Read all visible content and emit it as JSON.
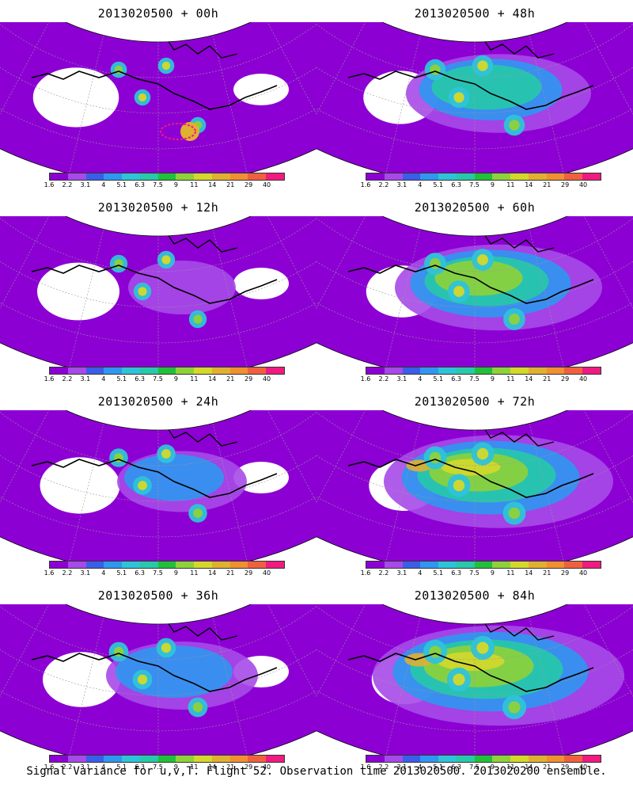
{
  "caption": "Signal Variance for u,v,T. Flight 52. Observation time 2013020500. 2013020200 ensemble.",
  "colorbar": {
    "labels": [
      "1.6",
      "2.2",
      "3.1",
      "4",
      "5.1",
      "6.3",
      "7.5",
      "9",
      "11",
      "14",
      "21",
      "29",
      "40"
    ],
    "colors": [
      "#8c00d4",
      "#a64ae8",
      "#3a5ee8",
      "#2f97f0",
      "#2fc3d8",
      "#27c9a8",
      "#20c03a",
      "#8ed23a",
      "#d4d82a",
      "#e0b030",
      "#f09030",
      "#f06040",
      "#f01a80"
    ]
  },
  "panels": [
    {
      "title": "2013020500 + 00h",
      "intensity": 0.05
    },
    {
      "title": "2013020500 + 48h",
      "intensity": 0.55
    },
    {
      "title": "2013020500 + 12h",
      "intensity": 0.2
    },
    {
      "title": "2013020500 + 60h",
      "intensity": 0.65
    },
    {
      "title": "2013020500 + 24h",
      "intensity": 0.3
    },
    {
      "title": "2013020500 + 72h",
      "intensity": 0.75
    },
    {
      "title": "2013020500 + 36h",
      "intensity": 0.4
    },
    {
      "title": "2013020500 + 84h",
      "intensity": 0.85
    }
  ]
}
